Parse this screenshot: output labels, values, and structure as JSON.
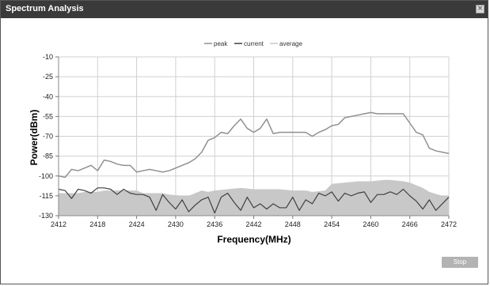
{
  "window": {
    "title": "Spectrum Analysis",
    "close_icon": "close-icon"
  },
  "controls": {
    "stop_label": "Stop"
  },
  "colors": {
    "titlebar": "#3a3a3a",
    "peak": "#909090",
    "current": "#404040",
    "average": "#c8c8c8",
    "grid": "#d0d0d0"
  },
  "chart_data": {
    "type": "line",
    "legend": [
      "peak",
      "current",
      "average"
    ],
    "legend_position": "top-center",
    "xlabel": "Frequency(MHz)",
    "ylabel": "Power(dBm)",
    "xlim": [
      2412,
      2472
    ],
    "ylim": [
      -130,
      -10
    ],
    "x_ticks": [
      2412,
      2418,
      2424,
      2430,
      2436,
      2442,
      2448,
      2454,
      2460,
      2466,
      2472
    ],
    "y_ticks": [
      -10,
      -25,
      -40,
      -55,
      -70,
      -85,
      -100,
      -115,
      -130
    ],
    "grid": true,
    "series": [
      {
        "name": "peak",
        "x": [
          2412,
          2413,
          2414,
          2415,
          2416,
          2417,
          2418,
          2419,
          2420,
          2421,
          2422,
          2423,
          2424,
          2425,
          2426,
          2427,
          2428,
          2429,
          2430,
          2431,
          2432,
          2433,
          2434,
          2435,
          2436,
          2437,
          2438,
          2439,
          2440,
          2441,
          2442,
          2443,
          2444,
          2445,
          2446,
          2447,
          2448,
          2449,
          2450,
          2451,
          2452,
          2453,
          2454,
          2455,
          2456,
          2457,
          2458,
          2459,
          2460,
          2461,
          2462,
          2463,
          2464,
          2465,
          2466,
          2467,
          2468,
          2469,
          2470,
          2471,
          2472
        ],
        "y": [
          -100,
          -101,
          -95,
          -96,
          -94,
          -92,
          -96,
          -88,
          -89,
          -91,
          -92,
          -92,
          -97,
          -96,
          -95,
          -96,
          -97,
          -96,
          -94,
          -92,
          -90,
          -87,
          -82,
          -73,
          -71,
          -67,
          -68,
          -62,
          -57,
          -64,
          -67,
          -64,
          -57,
          -68,
          -67,
          -67,
          -67,
          -67,
          -67,
          -70,
          -67,
          -65,
          -62,
          -61,
          -56,
          -55,
          -54,
          -53,
          -52,
          -53,
          -53,
          -53,
          -53,
          -53,
          -60,
          -67,
          -69,
          -79,
          -81,
          -82,
          -83
        ]
      },
      {
        "name": "current",
        "x": [
          2412,
          2413,
          2414,
          2415,
          2416,
          2417,
          2418,
          2419,
          2420,
          2421,
          2422,
          2423,
          2424,
          2425,
          2426,
          2427,
          2428,
          2429,
          2430,
          2431,
          2432,
          2433,
          2434,
          2435,
          2436,
          2437,
          2438,
          2439,
          2440,
          2441,
          2442,
          2443,
          2444,
          2445,
          2446,
          2447,
          2448,
          2449,
          2450,
          2451,
          2452,
          2453,
          2454,
          2455,
          2456,
          2457,
          2458,
          2459,
          2460,
          2461,
          2462,
          2463,
          2464,
          2465,
          2466,
          2467,
          2468,
          2469,
          2470,
          2471,
          2472
        ],
        "y": [
          -110,
          -111,
          -117,
          -110,
          -111,
          -113,
          -109,
          -109,
          -110,
          -114,
          -110,
          -113,
          -114,
          -114,
          -116,
          -126,
          -114,
          -120,
          -125,
          -118,
          -127,
          -122,
          -118,
          -116,
          -128,
          -116,
          -113,
          -120,
          -126,
          -116,
          -124,
          -121,
          -125,
          -121,
          -124,
          -124,
          -116,
          -126,
          -118,
          -121,
          -113,
          -115,
          -112,
          -119,
          -113,
          -115,
          -113,
          -112,
          -120,
          -114,
          -114,
          -112,
          -114,
          -110,
          -115,
          -119,
          -125,
          -118,
          -126,
          -121,
          -116
        ]
      },
      {
        "name": "average",
        "x": [
          2412,
          2415,
          2416,
          2418,
          2419,
          2424,
          2425,
          2428,
          2429,
          2431,
          2432,
          2434,
          2435,
          2436,
          2438,
          2440,
          2442,
          2444,
          2446,
          2448,
          2450,
          2451,
          2453,
          2454,
          2456,
          2458,
          2460,
          2462,
          2463,
          2465,
          2466,
          2468,
          2469,
          2471,
          2472
        ],
        "y": [
          -113,
          -113,
          -112,
          -112,
          -111,
          -111,
          -113,
          -113,
          -114,
          -115,
          -115,
          -111,
          -112,
          -111,
          -110,
          -109,
          -110,
          -110,
          -110,
          -111,
          -111,
          -112,
          -111,
          -106,
          -105,
          -104,
          -104,
          -103,
          -103,
          -104,
          -105,
          -109,
          -112,
          -115,
          -115
        ]
      }
    ]
  }
}
